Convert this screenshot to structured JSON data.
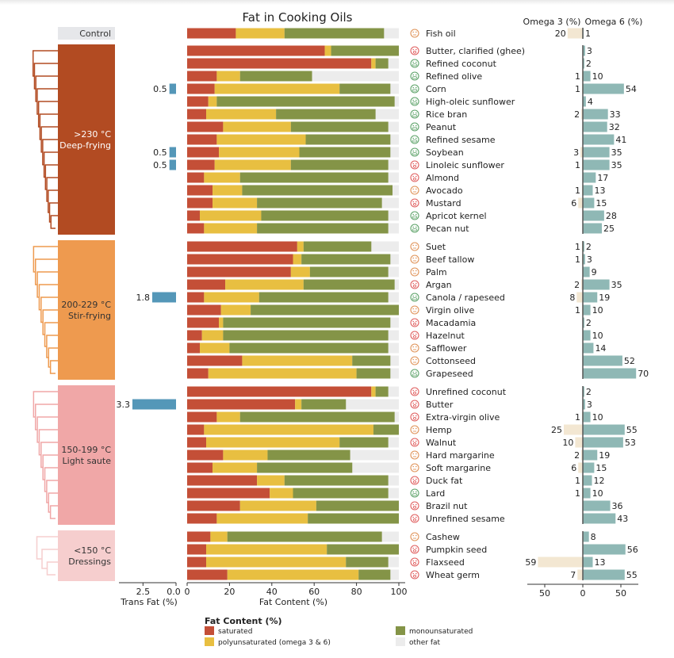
{
  "chart_data": {
    "type": "bar",
    "title": "Fat in Cooking Oils",
    "fat_axis": {
      "xlabel": "Fat Content (%)",
      "xlim": [
        0,
        100
      ],
      "ticks": [
        "0",
        "20",
        "40",
        "60",
        "80",
        "100"
      ]
    },
    "trans_axis": {
      "xlabel": "Trans Fat (%)",
      "xlim": [
        4.2,
        0
      ],
      "ticks": [
        "2.5",
        "0.0"
      ]
    },
    "omega_axis": {
      "left_label": "Omega 3 (%)",
      "right_label": "Omega 6 (%)",
      "xlim": [
        -60,
        70
      ],
      "ticks": [
        "50",
        "0",
        "50"
      ]
    },
    "legend": {
      "title": "Fat Content (%)",
      "entries": [
        {
          "key": "saturated",
          "label": "saturated",
          "color": "#c44f37"
        },
        {
          "key": "poly",
          "label": "polyunsaturated (omega 3 & 6)",
          "color": "#e8bf41"
        },
        {
          "key": "mono",
          "label": "monounsaturated",
          "color": "#849447"
        },
        {
          "key": "other",
          "label": "other fat",
          "color": "#ececec"
        }
      ]
    },
    "colors": {
      "trans": "#5497b8",
      "omega3": "#f3e7d2",
      "omega6": "#8fb8b5",
      "face_good": "#5ea36a",
      "face_neutral": "#e0945a",
      "face_bad": "#e06060"
    },
    "groups": [
      {
        "label_line1": "Control",
        "label_line2": "",
        "color": "#e6e7ea",
        "text_color": "#333",
        "rows": [
          {
            "name": "Fish oil",
            "rating": "neutral",
            "saturated": 23,
            "poly": 23,
            "mono": 47,
            "trans": null,
            "omega3": 20,
            "omega6": 1
          }
        ]
      },
      {
        "label_line1": ">230 °C",
        "label_line2": "Deep-frying",
        "color": "#b24b22",
        "text_color": "#ffffff",
        "rows": [
          {
            "name": "Butter, clarified (ghee)",
            "rating": "bad",
            "saturated": 65,
            "poly": 3,
            "mono": 32,
            "trans": null,
            "omega3": null,
            "omega6": 3
          },
          {
            "name": "Refined coconut",
            "rating": "good",
            "saturated": 87,
            "poly": 2,
            "mono": 6,
            "trans": null,
            "omega3": null,
            "omega6": 2
          },
          {
            "name": "Refined olive",
            "rating": "good",
            "saturated": 14,
            "poly": 11,
            "mono": 34,
            "trans": null,
            "omega3": 1,
            "omega6": 10
          },
          {
            "name": "Corn",
            "rating": "good",
            "saturated": 13,
            "poly": 59,
            "mono": 24,
            "trans": 0.5,
            "omega3": 1,
            "omega6": 54
          },
          {
            "name": "High-oleic sunflower",
            "rating": "good",
            "saturated": 10,
            "poly": 4,
            "mono": 84,
            "trans": null,
            "omega3": null,
            "omega6": 4
          },
          {
            "name": "Rice bran",
            "rating": "good",
            "saturated": 9,
            "poly": 33,
            "mono": 47,
            "trans": null,
            "omega3": 2,
            "omega6": 33
          },
          {
            "name": "Peanut",
            "rating": "good",
            "saturated": 17,
            "poly": 32,
            "mono": 46,
            "trans": null,
            "omega3": null,
            "omega6": 32
          },
          {
            "name": "Refined sesame",
            "rating": "good",
            "saturated": 14,
            "poly": 42,
            "mono": 40,
            "trans": null,
            "omega3": null,
            "omega6": 41
          },
          {
            "name": "Soybean",
            "rating": "good",
            "saturated": 15,
            "poly": 38,
            "mono": 43,
            "trans": 0.5,
            "omega3": 3,
            "omega6": 35
          },
          {
            "name": "Linoleic sunflower",
            "rating": "bad",
            "saturated": 13,
            "poly": 36,
            "mono": 46,
            "trans": 0.5,
            "omega3": 1,
            "omega6": 35
          },
          {
            "name": "Almond",
            "rating": "bad",
            "saturated": 8,
            "poly": 17,
            "mono": 70,
            "trans": null,
            "omega3": null,
            "omega6": 17
          },
          {
            "name": "Avocado",
            "rating": "neutral",
            "saturated": 12,
            "poly": 14,
            "mono": 71,
            "trans": null,
            "omega3": 1,
            "omega6": 13
          },
          {
            "name": "Mustard",
            "rating": "bad",
            "saturated": 12,
            "poly": 21,
            "mono": 59,
            "trans": null,
            "omega3": 6,
            "omega6": 15
          },
          {
            "name": "Apricot kernel",
            "rating": "good",
            "saturated": 6,
            "poly": 29,
            "mono": 60,
            "trans": null,
            "omega3": null,
            "omega6": 28
          },
          {
            "name": "Pecan nut",
            "rating": "good",
            "saturated": 8,
            "poly": 25,
            "mono": 62,
            "trans": null,
            "omega3": null,
            "omega6": 25
          }
        ]
      },
      {
        "label_line1": "200-229 °C",
        "label_line2": "Stir-frying",
        "color": "#ee9a4f",
        "text_color": "#333",
        "rows": [
          {
            "name": "Suet",
            "rating": "neutral",
            "saturated": 52,
            "poly": 3,
            "mono": 32,
            "trans": null,
            "omega3": 1,
            "omega6": 2
          },
          {
            "name": "Beef tallow",
            "rating": "neutral",
            "saturated": 50,
            "poly": 4,
            "mono": 42,
            "trans": null,
            "omega3": 1,
            "omega6": 3
          },
          {
            "name": "Palm",
            "rating": "neutral",
            "saturated": 49,
            "poly": 9,
            "mono": 37,
            "trans": null,
            "omega3": null,
            "omega6": 9
          },
          {
            "name": "Argan",
            "rating": "bad",
            "saturated": 18,
            "poly": 37,
            "mono": 43,
            "trans": null,
            "omega3": 2,
            "omega6": 35
          },
          {
            "name": "Canola / rapeseed",
            "rating": "good",
            "saturated": 8,
            "poly": 26,
            "mono": 61,
            "trans": 1.8,
            "omega3": 8,
            "omega6": 19
          },
          {
            "name": "Virgin olive",
            "rating": "neutral",
            "saturated": 16,
            "poly": 14,
            "mono": 70,
            "trans": null,
            "omega3": 1,
            "omega6": 10
          },
          {
            "name": "Macadamia",
            "rating": "bad",
            "saturated": 15,
            "poly": 2,
            "mono": 79,
            "trans": null,
            "omega3": null,
            "omega6": 2
          },
          {
            "name": "Hazelnut",
            "rating": "bad",
            "saturated": 7,
            "poly": 10,
            "mono": 78,
            "trans": null,
            "omega3": null,
            "omega6": 10
          },
          {
            "name": "Safflower",
            "rating": "neutral",
            "saturated": 6,
            "poly": 14,
            "mono": 75,
            "trans": null,
            "omega3": null,
            "omega6": 14
          },
          {
            "name": "Cottonseed",
            "rating": "neutral",
            "saturated": 26,
            "poly": 52,
            "mono": 18,
            "trans": null,
            "omega3": null,
            "omega6": 52
          },
          {
            "name": "Grapeseed",
            "rating": "good",
            "saturated": 10,
            "poly": 70,
            "mono": 16,
            "trans": null,
            "omega3": null,
            "omega6": 70
          }
        ]
      },
      {
        "label_line1": "150-199 °C",
        "label_line2": "Light saute",
        "color": "#f0a7a7",
        "text_color": "#333",
        "rows": [
          {
            "name": "Unrefined coconut",
            "rating": "bad",
            "saturated": 87,
            "poly": 2,
            "mono": 6,
            "trans": null,
            "omega3": null,
            "omega6": 2
          },
          {
            "name": "Butter",
            "rating": "bad",
            "saturated": 51,
            "poly": 3,
            "mono": 21,
            "trans": 3.3,
            "omega3": null,
            "omega6": 3
          },
          {
            "name": "Extra-virgin olive",
            "rating": "bad",
            "saturated": 14,
            "poly": 11,
            "mono": 73,
            "trans": null,
            "omega3": 1,
            "omega6": 10
          },
          {
            "name": "Hemp",
            "rating": "neutral",
            "saturated": 8,
            "poly": 80,
            "mono": 12,
            "trans": null,
            "omega3": 25,
            "omega6": 55
          },
          {
            "name": "Walnut",
            "rating": "bad",
            "saturated": 9,
            "poly": 63,
            "mono": 23,
            "trans": null,
            "omega3": 10,
            "omega6": 53
          },
          {
            "name": "Hard margarine",
            "rating": "neutral",
            "saturated": 17,
            "poly": 21,
            "mono": 39,
            "trans": null,
            "omega3": 2,
            "omega6": 19
          },
          {
            "name": "Soft margarine",
            "rating": "neutral",
            "saturated": 12,
            "poly": 21,
            "mono": 45,
            "trans": null,
            "omega3": 6,
            "omega6": 15
          },
          {
            "name": "Duck fat",
            "rating": "bad",
            "saturated": 33,
            "poly": 13,
            "mono": 49,
            "trans": null,
            "omega3": 1,
            "omega6": 12
          },
          {
            "name": "Lard",
            "rating": "good",
            "saturated": 39,
            "poly": 11,
            "mono": 45,
            "trans": null,
            "omega3": 1,
            "omega6": 10
          },
          {
            "name": "Brazil nut",
            "rating": "bad",
            "saturated": 25,
            "poly": 36,
            "mono": 39,
            "trans": null,
            "omega3": null,
            "omega6": 36
          },
          {
            "name": "Unrefined sesame",
            "rating": "bad",
            "saturated": 14,
            "poly": 43,
            "mono": 43,
            "trans": null,
            "omega3": null,
            "omega6": 43
          }
        ]
      },
      {
        "label_line1": "<150 °C",
        "label_line2": "Dressings",
        "color": "#f6cece",
        "text_color": "#333",
        "rows": [
          {
            "name": "Cashew",
            "rating": "neutral",
            "saturated": 11,
            "poly": 8,
            "mono": 73,
            "trans": null,
            "omega3": null,
            "omega6": 8
          },
          {
            "name": "Pumpkin seed",
            "rating": "bad",
            "saturated": 9,
            "poly": 57,
            "mono": 34,
            "trans": null,
            "omega3": null,
            "omega6": 56
          },
          {
            "name": "Flaxseed",
            "rating": "bad",
            "saturated": 9,
            "poly": 66,
            "mono": 20,
            "trans": null,
            "omega3": 59,
            "omega6": 13
          },
          {
            "name": "Wheat germ",
            "rating": "bad",
            "saturated": 19,
            "poly": 62,
            "mono": 15,
            "trans": null,
            "omega3": 7,
            "omega6": 55
          }
        ]
      }
    ]
  }
}
